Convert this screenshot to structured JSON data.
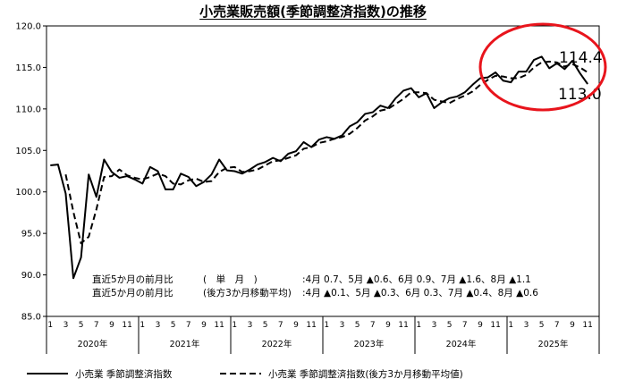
{
  "chart_data": {
    "type": "line",
    "title": "小売業販売額(季節調整済指数)の推移",
    "ylim": [
      85.0,
      120.0
    ],
    "y_ticks": [
      "120.0",
      "115.0",
      "110.0",
      "105.0",
      "100.0",
      "95.0",
      "90.0",
      "85.0"
    ],
    "month_ticks": [
      "1",
      "3",
      "5",
      "7",
      "9",
      "11"
    ],
    "years": [
      "2020年",
      "2021年",
      "2022年",
      "2023年",
      "2024年",
      "2025年"
    ],
    "x_start": "2020-01",
    "grid": false,
    "series": [
      {
        "name": "小売業 季節調整済指数",
        "style": "solid",
        "values": [
          103.2,
          103.3,
          99.8,
          89.6,
          92.1,
          102.1,
          99.4,
          103.9,
          102.4,
          101.7,
          101.9,
          101.5,
          101.0,
          103.0,
          102.5,
          100.3,
          100.3,
          102.2,
          101.8,
          100.7,
          101.2,
          102.1,
          103.9,
          102.6,
          102.5,
          102.2,
          102.7,
          103.3,
          103.6,
          104.1,
          103.7,
          104.6,
          104.9,
          106.0,
          105.4,
          106.3,
          106.6,
          106.4,
          106.8,
          107.9,
          108.4,
          109.4,
          109.6,
          110.4,
          110.1,
          111.3,
          112.2,
          112.5,
          111.4,
          111.9,
          110.1,
          110.8,
          111.3,
          111.5,
          112.0,
          112.9,
          113.7,
          113.8,
          114.4,
          113.4,
          113.2,
          114.5,
          114.5,
          115.9,
          116.3,
          114.9,
          115.5,
          114.8,
          115.8,
          114.3,
          113.0
        ],
        "end_label": "113.0"
      },
      {
        "name": "小売業 季節調整済指数(後方3か月移動平均値)",
        "style": "dashed",
        "values": [
          null,
          null,
          102.1,
          97.6,
          93.8,
          94.6,
          97.9,
          101.8,
          101.9,
          102.7,
          102.0,
          101.7,
          101.5,
          101.8,
          102.2,
          101.9,
          101.0,
          100.9,
          101.4,
          101.6,
          101.2,
          101.3,
          102.4,
          102.9,
          103.0,
          102.4,
          102.5,
          102.7,
          103.2,
          103.7,
          103.8,
          104.1,
          104.4,
          105.2,
          105.4,
          105.9,
          106.1,
          106.4,
          106.6,
          107.0,
          107.7,
          108.6,
          109.1,
          109.8,
          110.0,
          110.6,
          111.2,
          112.0,
          112.0,
          111.9,
          111.1,
          110.9,
          110.7,
          111.2,
          111.6,
          112.1,
          112.9,
          113.5,
          114.0,
          113.9,
          113.7,
          113.7,
          114.1,
          115.0,
          115.6,
          115.7,
          115.6,
          115.1,
          115.4,
          115.0,
          114.4
        ],
        "end_label": "114.4"
      }
    ],
    "annotations": [
      {
        "label": "直近5か月の前月比",
        "sub": "(　単　月　)",
        "values": ":4月 0.7、5月 ▲0.6、6月 0.9、7月 ▲1.6、8月 ▲1.1"
      },
      {
        "label": "直近5か月の前月比",
        "sub": "(後方3か月移動平均)",
        "values": ":4月 ▲0.1、5月 ▲0.3、6月 0.3、7月 ▲0.4、8月 ▲0.6"
      }
    ],
    "highlight_color": "#e8141c",
    "line_color": "#000000"
  }
}
